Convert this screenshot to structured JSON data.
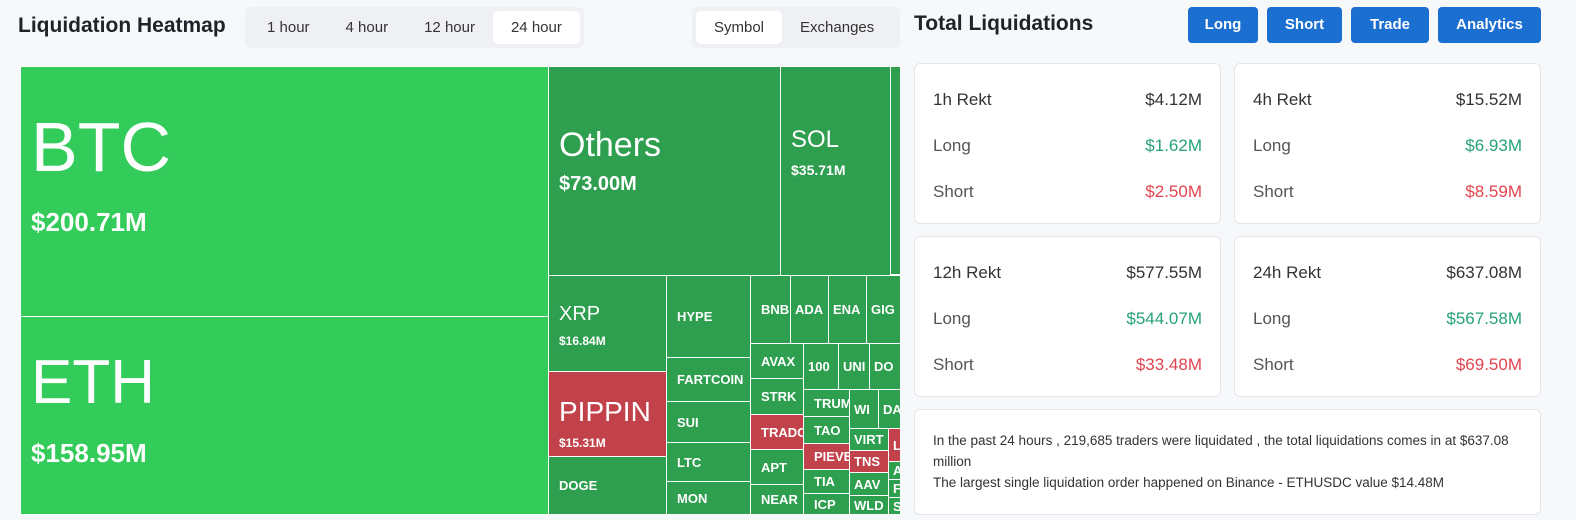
{
  "header": {
    "title": "Liquidation Heatmap",
    "time_tabs": [
      "1 hour",
      "4 hour",
      "12 hour",
      "24 hour"
    ],
    "active_time_tab": "24 hour",
    "view_tabs": [
      "Symbol",
      "Exchanges"
    ],
    "active_view_tab": "Symbol"
  },
  "colors": {
    "top_green": "#33cc5a",
    "green": "#2e9e4f",
    "red": "#c1424a",
    "button_blue": "#1a6fd1",
    "long": "#26a17b",
    "short": "#e2444f"
  },
  "heatmap": [
    {
      "symbol": "BTC",
      "value": "$200.71M"
    },
    {
      "symbol": "ETH",
      "value": "$158.95M"
    },
    {
      "symbol": "Others",
      "value": "$73.00M"
    },
    {
      "symbol": "SOL",
      "value": "$35.71M"
    },
    {
      "symbol": "XRP",
      "value": "$16.84M"
    },
    {
      "symbol": "PIPPIN",
      "value": "$15.31M"
    },
    {
      "symbol": "DOGE"
    },
    {
      "symbol": "HYPE"
    },
    {
      "symbol": "FARTCOIN"
    },
    {
      "symbol": "SUI"
    },
    {
      "symbol": "LTC"
    },
    {
      "symbol": "MON"
    },
    {
      "symbol": "BNB"
    },
    {
      "symbol": "ADA"
    },
    {
      "symbol": "ENA"
    },
    {
      "symbol": "GIG"
    },
    {
      "symbol": "AVAX"
    },
    {
      "symbol": "STRK"
    },
    {
      "symbol": "TRADO"
    },
    {
      "symbol": "APT"
    },
    {
      "symbol": "NEAR"
    },
    {
      "symbol": "100"
    },
    {
      "symbol": "UNI"
    },
    {
      "symbol": "DO"
    },
    {
      "symbol": "TRUM"
    },
    {
      "symbol": "TAO"
    },
    {
      "symbol": "PIEVE"
    },
    {
      "symbol": "TIA"
    },
    {
      "symbol": "ICP"
    },
    {
      "symbol": "WI"
    },
    {
      "symbol": "DA"
    },
    {
      "symbol": "VIRT"
    },
    {
      "symbol": "L"
    },
    {
      "symbol": "TNS"
    },
    {
      "symbol": "AAV"
    },
    {
      "symbol": "WLD"
    },
    {
      "symbol": "A"
    },
    {
      "symbol": "F"
    },
    {
      "symbol": "S"
    }
  ],
  "totals": {
    "title": "Total Liquidations",
    "buttons": [
      "Long",
      "Short",
      "Trade",
      "Analytics"
    ],
    "cards": [
      {
        "label": "1h Rekt",
        "total": "$4.12M",
        "long_label": "Long",
        "long": "$1.62M",
        "short_label": "Short",
        "short": "$2.50M"
      },
      {
        "label": "4h Rekt",
        "total": "$15.52M",
        "long_label": "Long",
        "long": "$6.93M",
        "short_label": "Short",
        "short": "$8.59M"
      },
      {
        "label": "12h Rekt",
        "total": "$577.55M",
        "long_label": "Long",
        "long": "$544.07M",
        "short_label": "Short",
        "short": "$33.48M"
      },
      {
        "label": "24h Rekt",
        "total": "$637.08M",
        "long_label": "Long",
        "long": "$567.58M",
        "short_label": "Short",
        "short": "$69.50M"
      }
    ],
    "summary_line1": "In the past 24 hours , 219,685 traders were liquidated , the total liquidations comes in at $637.08 million",
    "summary_line2": "The largest single liquidation order happened on Binance - ETHUSDC value $14.48M"
  }
}
